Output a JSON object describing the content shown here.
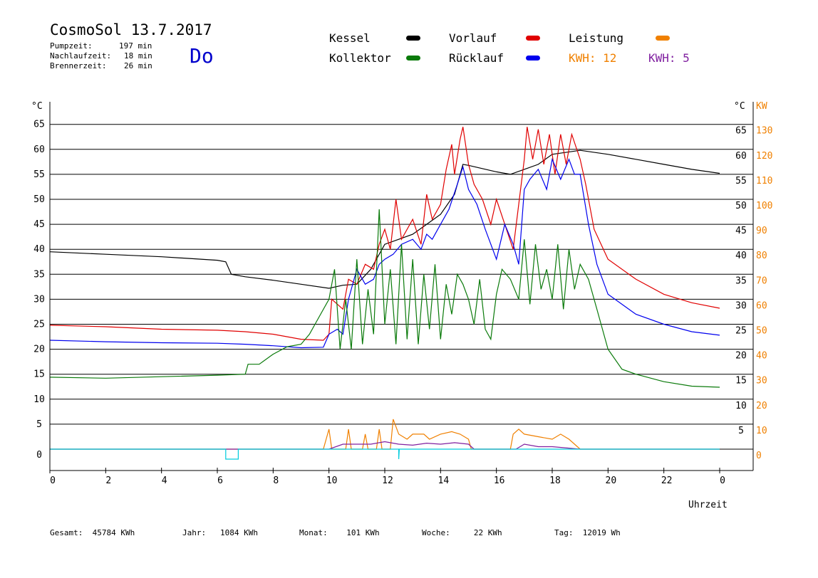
{
  "header": {
    "title": "CosmoSol 13.7.2017",
    "day": "Do",
    "stats": [
      {
        "label": "Pumpzeit:",
        "value": "197 min"
      },
      {
        "label": "Nachlaufzeit:",
        "value": "18 min"
      },
      {
        "label": "Brennerzeit:",
        "value": "26 min"
      }
    ]
  },
  "legend": {
    "kessel": {
      "label": "Kessel",
      "color": "#000000"
    },
    "kollektor": {
      "label": "Kollektor",
      "color": "#0a7a0a"
    },
    "vorlauf": {
      "label": "Vorlauf",
      "color": "#e00000"
    },
    "ruecklauf": {
      "label": "Rücklauf",
      "color": "#0000ee"
    },
    "leistung": {
      "label": "Leistung",
      "color": "#f08000"
    },
    "kwh1": {
      "label": "KWH:",
      "value": "12",
      "color": "#f08000"
    },
    "kwh2": {
      "label": "KWH:",
      "value": "5",
      "color": "#8020a0"
    }
  },
  "footer": [
    {
      "label": "Gesamt:",
      "value": "45784 KWh"
    },
    {
      "label": "Jahr:",
      "value": "1084 KWh"
    },
    {
      "label": "Monat:",
      "value": "101 KWh"
    },
    {
      "label": "Woche:",
      "value": "22 KWh"
    },
    {
      "label": "Tag:",
      "value": "12019 Wh"
    }
  ],
  "chart_data": {
    "type": "line",
    "title": "",
    "xlabel": "Uhrzeit",
    "ylabel_left": "°C",
    "ylabel_right_temp": "°C",
    "ylabel_right_power": "KW",
    "xlim": [
      0,
      24
    ],
    "ylim": [
      -3,
      70
    ],
    "x_ticks": [
      "0",
      "2",
      "4",
      "6",
      "8",
      "10",
      "12",
      "14",
      "16",
      "18",
      "20",
      "22",
      "0"
    ],
    "y_ticks_left": [
      "0",
      "5",
      "10",
      "15",
      "20",
      "25",
      "30",
      "35",
      "40",
      "45",
      "50",
      "55",
      "60",
      "65"
    ],
    "y_ticks_right_temp": [
      "5",
      "10",
      "15",
      "20",
      "25",
      "30",
      "35",
      "40",
      "45",
      "50",
      "55",
      "60",
      "65"
    ],
    "y_ticks_right_power": [
      "0",
      "10",
      "20",
      "30",
      "40",
      "50",
      "60",
      "70",
      "80",
      "90",
      "100",
      "110",
      "120",
      "130"
    ],
    "grid": true,
    "series": [
      {
        "name": "Kessel",
        "color": "#000000",
        "points": [
          [
            0,
            39.5
          ],
          [
            2,
            39
          ],
          [
            4,
            38.5
          ],
          [
            6,
            37.8
          ],
          [
            6.3,
            37.5
          ],
          [
            6.5,
            35
          ],
          [
            7,
            34.5
          ],
          [
            8,
            33.8
          ],
          [
            9,
            33
          ],
          [
            10,
            32.2
          ],
          [
            10.5,
            32.8
          ],
          [
            11,
            33
          ],
          [
            11.5,
            36
          ],
          [
            12,
            41
          ],
          [
            12.5,
            42
          ],
          [
            13,
            43
          ],
          [
            13.5,
            45
          ],
          [
            14,
            47
          ],
          [
            14.5,
            51
          ],
          [
            14.8,
            57
          ],
          [
            15,
            56.8
          ],
          [
            16,
            55.5
          ],
          [
            16.5,
            55
          ],
          [
            17,
            56
          ],
          [
            17.5,
            57
          ],
          [
            18,
            59
          ],
          [
            19,
            59.8
          ],
          [
            20,
            59
          ],
          [
            21,
            58
          ],
          [
            22,
            57
          ],
          [
            23,
            56
          ],
          [
            24,
            55.2
          ]
        ]
      },
      {
        "name": "Vorlauf",
        "color": "#e00000",
        "points": [
          [
            0,
            24.8
          ],
          [
            2,
            24.5
          ],
          [
            4,
            24
          ],
          [
            6,
            23.8
          ],
          [
            7,
            23.5
          ],
          [
            8,
            23
          ],
          [
            9,
            22
          ],
          [
            9.8,
            21.8
          ],
          [
            10,
            23
          ],
          [
            10.1,
            30
          ],
          [
            10.5,
            28
          ],
          [
            10.7,
            34
          ],
          [
            11,
            33
          ],
          [
            11.3,
            37
          ],
          [
            11.6,
            36
          ],
          [
            11.8,
            41
          ],
          [
            12,
            44
          ],
          [
            12.2,
            40
          ],
          [
            12.4,
            50
          ],
          [
            12.6,
            42
          ],
          [
            13,
            46
          ],
          [
            13.3,
            41
          ],
          [
            13.5,
            51
          ],
          [
            13.7,
            46
          ],
          [
            14,
            49
          ],
          [
            14.2,
            56
          ],
          [
            14.4,
            61
          ],
          [
            14.5,
            55
          ],
          [
            14.7,
            62
          ],
          [
            14.8,
            64.5
          ],
          [
            15,
            57
          ],
          [
            15.2,
            53
          ],
          [
            15.5,
            50
          ],
          [
            15.8,
            45
          ],
          [
            16,
            50
          ],
          [
            16.3,
            45
          ],
          [
            16.6,
            40
          ],
          [
            16.8,
            49
          ],
          [
            17,
            58
          ],
          [
            17.1,
            64.5
          ],
          [
            17.3,
            58
          ],
          [
            17.5,
            64
          ],
          [
            17.7,
            57
          ],
          [
            17.9,
            63
          ],
          [
            18.1,
            55
          ],
          [
            18.3,
            63
          ],
          [
            18.5,
            57
          ],
          [
            18.7,
            63
          ],
          [
            19,
            58
          ],
          [
            19.2,
            53
          ],
          [
            19.5,
            44
          ],
          [
            20,
            38
          ],
          [
            21,
            34
          ],
          [
            22,
            31
          ],
          [
            23,
            29.3
          ],
          [
            24,
            28.2
          ]
        ]
      },
      {
        "name": "Rücklauf",
        "color": "#0000ee",
        "points": [
          [
            0,
            21.8
          ],
          [
            2,
            21.5
          ],
          [
            4,
            21.3
          ],
          [
            6,
            21.2
          ],
          [
            7,
            21
          ],
          [
            8,
            20.7
          ],
          [
            9,
            20.3
          ],
          [
            9.8,
            20.4
          ],
          [
            10,
            23
          ],
          [
            10.3,
            24
          ],
          [
            10.5,
            23
          ],
          [
            10.7,
            30
          ],
          [
            11,
            36
          ],
          [
            11.3,
            33
          ],
          [
            11.6,
            34
          ],
          [
            11.8,
            37
          ],
          [
            12,
            38
          ],
          [
            12.3,
            39
          ],
          [
            12.6,
            41
          ],
          [
            13,
            42
          ],
          [
            13.3,
            40
          ],
          [
            13.5,
            43
          ],
          [
            13.7,
            42
          ],
          [
            14,
            45
          ],
          [
            14.3,
            48
          ],
          [
            14.6,
            53
          ],
          [
            14.8,
            56.5
          ],
          [
            15,
            52
          ],
          [
            15.3,
            49
          ],
          [
            15.6,
            44
          ],
          [
            16,
            38
          ],
          [
            16.3,
            45
          ],
          [
            16.6,
            41
          ],
          [
            16.8,
            37
          ],
          [
            17,
            52
          ],
          [
            17.2,
            54
          ],
          [
            17.5,
            56
          ],
          [
            17.8,
            52
          ],
          [
            18,
            58
          ],
          [
            18.3,
            54
          ],
          [
            18.6,
            58
          ],
          [
            18.8,
            55
          ],
          [
            19,
            55
          ],
          [
            19.3,
            45
          ],
          [
            19.6,
            37
          ],
          [
            20,
            31
          ],
          [
            21,
            27
          ],
          [
            22,
            25
          ],
          [
            23,
            23.5
          ],
          [
            24,
            22.8
          ]
        ]
      },
      {
        "name": "Kollektor",
        "color": "#0a7a0a",
        "points": [
          [
            0,
            14.4
          ],
          [
            2,
            14.2
          ],
          [
            4,
            14.5
          ],
          [
            6,
            14.8
          ],
          [
            7,
            15
          ],
          [
            7.1,
            17
          ],
          [
            7.5,
            17
          ],
          [
            8,
            19
          ],
          [
            8.5,
            20.5
          ],
          [
            9,
            21
          ],
          [
            9.3,
            23
          ],
          [
            9.6,
            26
          ],
          [
            10,
            30
          ],
          [
            10.2,
            36
          ],
          [
            10.4,
            20
          ],
          [
            10.6,
            30
          ],
          [
            10.8,
            20
          ],
          [
            11,
            38
          ],
          [
            11.2,
            21
          ],
          [
            11.4,
            32
          ],
          [
            11.6,
            23
          ],
          [
            11.8,
            48
          ],
          [
            12,
            25
          ],
          [
            12.2,
            36
          ],
          [
            12.4,
            21
          ],
          [
            12.6,
            41
          ],
          [
            12.8,
            22
          ],
          [
            13,
            38
          ],
          [
            13.2,
            21
          ],
          [
            13.4,
            35
          ],
          [
            13.6,
            24
          ],
          [
            13.8,
            37
          ],
          [
            14,
            22
          ],
          [
            14.2,
            33
          ],
          [
            14.4,
            27
          ],
          [
            14.6,
            35
          ],
          [
            14.8,
            33
          ],
          [
            15,
            30
          ],
          [
            15.2,
            25
          ],
          [
            15.4,
            34
          ],
          [
            15.6,
            24
          ],
          [
            15.8,
            22
          ],
          [
            16,
            31
          ],
          [
            16.2,
            36
          ],
          [
            16.5,
            34
          ],
          [
            16.8,
            30
          ],
          [
            17,
            42
          ],
          [
            17.2,
            29
          ],
          [
            17.4,
            41
          ],
          [
            17.6,
            32
          ],
          [
            17.8,
            36
          ],
          [
            18,
            30
          ],
          [
            18.2,
            41
          ],
          [
            18.4,
            28
          ],
          [
            18.6,
            40
          ],
          [
            18.8,
            32
          ],
          [
            19,
            37
          ],
          [
            19.3,
            34
          ],
          [
            19.6,
            28
          ],
          [
            20,
            20
          ],
          [
            20.5,
            16
          ],
          [
            21,
            15
          ],
          [
            22,
            13.5
          ],
          [
            23,
            12.6
          ],
          [
            24,
            12.4
          ]
        ]
      },
      {
        "name": "Leistung",
        "color": "#f08000",
        "points": [
          [
            0,
            0
          ],
          [
            9.8,
            0
          ],
          [
            10,
            4
          ],
          [
            10.1,
            0
          ],
          [
            10.6,
            0
          ],
          [
            10.7,
            4
          ],
          [
            10.8,
            0
          ],
          [
            11.2,
            0
          ],
          [
            11.3,
            3
          ],
          [
            11.4,
            0
          ],
          [
            11.7,
            0
          ],
          [
            11.8,
            4
          ],
          [
            11.9,
            0
          ],
          [
            12.2,
            0
          ],
          [
            12.3,
            6
          ],
          [
            12.5,
            3
          ],
          [
            12.8,
            2
          ],
          [
            13,
            3
          ],
          [
            13.4,
            3
          ],
          [
            13.6,
            2
          ],
          [
            14,
            3
          ],
          [
            14.4,
            3.5
          ],
          [
            14.7,
            3
          ],
          [
            15,
            2
          ],
          [
            15.1,
            0
          ],
          [
            16.5,
            0
          ],
          [
            16.6,
            3
          ],
          [
            16.8,
            4
          ],
          [
            17,
            3
          ],
          [
            17.5,
            2.5
          ],
          [
            18,
            2
          ],
          [
            18.3,
            3
          ],
          [
            18.6,
            2
          ],
          [
            19,
            0
          ],
          [
            24,
            0
          ]
        ]
      },
      {
        "name": "Leistung 2",
        "color": "#8020a0",
        "points": [
          [
            0,
            0
          ],
          [
            10,
            0
          ],
          [
            10.5,
            1
          ],
          [
            11,
            1
          ],
          [
            11.5,
            1
          ],
          [
            12,
            1.5
          ],
          [
            12.5,
            1
          ],
          [
            13,
            0.8
          ],
          [
            13.5,
            1.2
          ],
          [
            14,
            1
          ],
          [
            14.5,
            1.3
          ],
          [
            15,
            1
          ],
          [
            15.2,
            0
          ],
          [
            16.7,
            0
          ],
          [
            17,
            1
          ],
          [
            17.5,
            0.5
          ],
          [
            18,
            0.5
          ],
          [
            19,
            0
          ],
          [
            24,
            0
          ]
        ]
      },
      {
        "name": "Pumpe",
        "color": "#00ccdd",
        "points": [
          [
            0,
            0
          ],
          [
            6.3,
            0
          ],
          [
            6.3,
            -2
          ],
          [
            6.75,
            -2
          ],
          [
            6.75,
            0
          ],
          [
            12.5,
            0
          ],
          [
            12.5,
            -2
          ],
          [
            12.52,
            0
          ],
          [
            24,
            0
          ]
        ]
      }
    ]
  }
}
